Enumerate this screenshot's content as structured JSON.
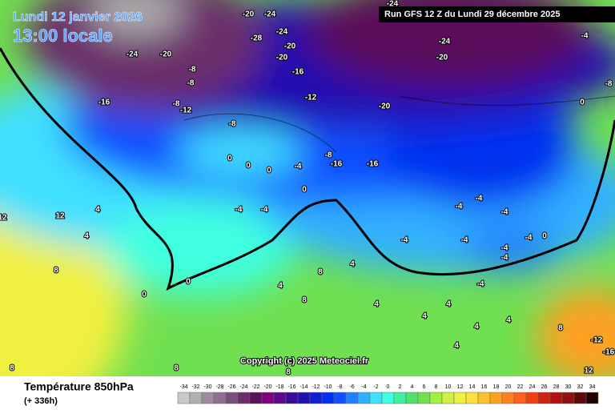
{
  "header": {
    "date": "Lundi 12 janvier 2026",
    "time": "13:00 locale",
    "run": "Run GFS 12 Z du Lundi 29 décembre 2025"
  },
  "copyright": "Copyright (c) 2025 Meteociel.fr",
  "footer": {
    "parameter": "Température 850hPa",
    "lead": "(+ 336h)"
  },
  "legend": {
    "values": [
      -34,
      -32,
      -30,
      -28,
      -26,
      -24,
      -22,
      -20,
      -18,
      -16,
      -14,
      -12,
      -10,
      -8,
      -6,
      -4,
      -2,
      0,
      2,
      4,
      6,
      8,
      10,
      12,
      14,
      16,
      18,
      20,
      22,
      24,
      26,
      28,
      30,
      32,
      34
    ],
    "colors": [
      "#c8c8c8",
      "#b0b0b0",
      "#a08aa0",
      "#907090",
      "#7a4f7a",
      "#6a2d6a",
      "#5a105a",
      "#800080",
      "#5a0a8a",
      "#3a0a9a",
      "#2010b0",
      "#1020d0",
      "#0030f0",
      "#1050ff",
      "#2080ff",
      "#30b0ff",
      "#40e0ff",
      "#40ffe0",
      "#40f0a0",
      "#50e070",
      "#70e050",
      "#a0f040",
      "#d0f040",
      "#f0f040",
      "#ffe040",
      "#ffc030",
      "#ffa020",
      "#ff8020",
      "#ff6020",
      "#f04010",
      "#d02010",
      "#b01010",
      "#901010",
      "#600808",
      "#200000"
    ]
  },
  "map_labels": [
    -24,
    -20,
    -20,
    -24,
    -28,
    -24,
    -20,
    -20,
    -16,
    -8,
    -8,
    -16,
    -12,
    -8,
    -12,
    -20,
    -24,
    -20,
    -24,
    -4,
    -8,
    0,
    -8,
    -8,
    -16,
    -16,
    -4,
    0,
    0,
    0,
    -4,
    -4,
    0,
    4,
    12,
    4,
    8,
    12,
    0,
    0,
    -4,
    -4,
    -4,
    -4,
    -4,
    -4,
    -4,
    0,
    -4,
    -4,
    4,
    8,
    4,
    8,
    4,
    4,
    4,
    4,
    4,
    8,
    -12,
    -16,
    12,
    4,
    8,
    8,
    8
  ]
}
